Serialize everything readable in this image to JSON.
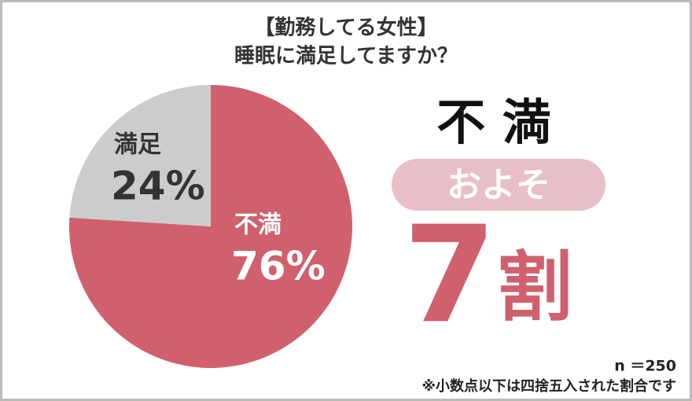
{
  "chart_data": {
    "type": "pie",
    "title": [
      "【勤務してる女性】",
      "睡眠に満足してますか？"
    ],
    "categories": [
      "不満",
      "満足"
    ],
    "values": [
      76,
      24
    ],
    "value_labels": [
      "76%",
      "24%"
    ],
    "colors": [
      "#d0606e",
      "#cccccc"
    ],
    "highlight": {
      "label": "不 満",
      "prefix": "およそ",
      "number": "7",
      "suffix": "割"
    },
    "sample_size": "n ＝250",
    "note": "※小数点以下は四捨五入された割合です"
  }
}
